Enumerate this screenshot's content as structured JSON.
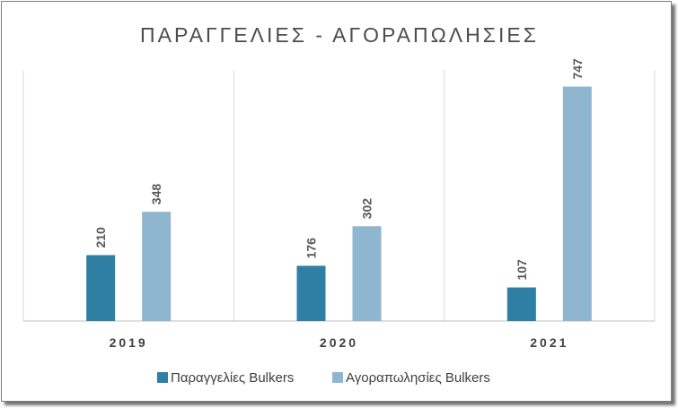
{
  "chart_data": {
    "type": "bar",
    "title": "ΠΑΡΑΓΓΕΛΙΕΣ  - ΑΓΟΡΑΠΩΛΗΣΙΕΣ",
    "categories": [
      "2019",
      "2020",
      "2021"
    ],
    "series": [
      {
        "name": "Παραγγελίες Bulkers",
        "values": [
          210,
          176,
          107
        ],
        "color": "#2e7fa3"
      },
      {
        "name": "Αγοραπωλησίες Bulkers",
        "values": [
          348,
          302,
          747
        ],
        "color": "#8fb6cf"
      }
    ],
    "ylim": [
      0,
      800
    ],
    "grid": false,
    "legend": "bottom",
    "data_labels": true
  }
}
